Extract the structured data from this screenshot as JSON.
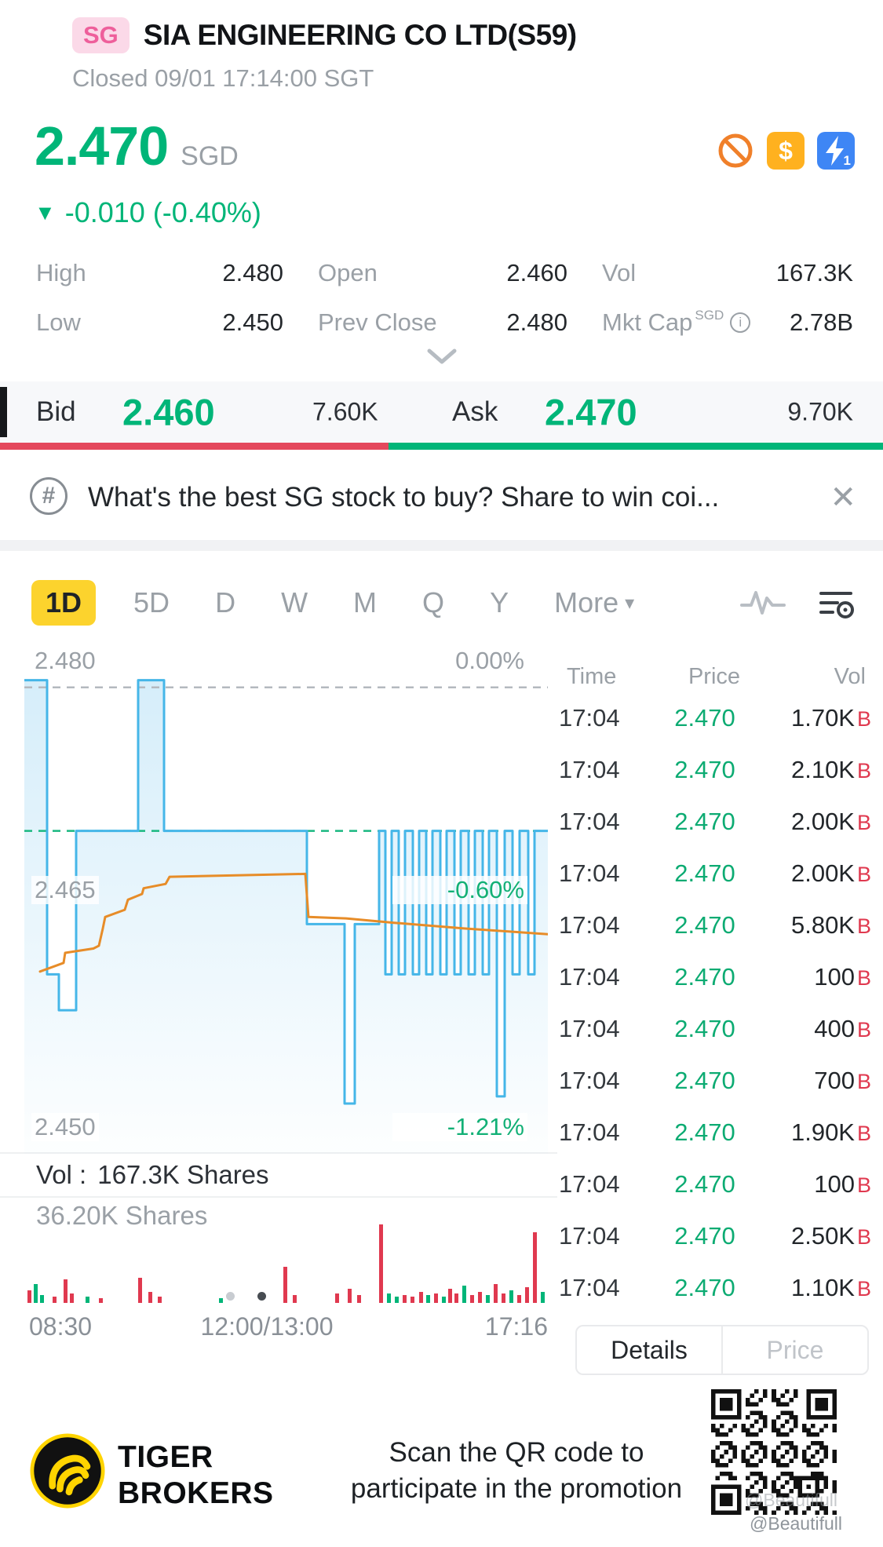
{
  "header": {
    "exchange_badge": "SG",
    "title": "SIA ENGINEERING CO LTD(S59)",
    "status": "Closed 09/01 17:14:00 SGT"
  },
  "quote": {
    "price": "2.470",
    "currency": "SGD",
    "direction": "▼",
    "change": "-0.010 (-0.40%)",
    "icons": {
      "dollar_glyph": "$",
      "flash_badge": "1"
    },
    "stats": [
      {
        "label": "High",
        "value": "2.480"
      },
      {
        "label": "Open",
        "value": "2.460"
      },
      {
        "label": "Vol",
        "value": "167.3K"
      },
      {
        "label": "Low",
        "value": "2.450"
      },
      {
        "label": "Prev Close",
        "value": "2.480"
      },
      {
        "label": "Mkt Cap",
        "sup": "SGD",
        "info": true,
        "value": "2.78B"
      }
    ]
  },
  "bid_ask": {
    "bid_label": "Bid",
    "bid_price": "2.460",
    "bid_size": "7.60K",
    "ask_label": "Ask",
    "ask_price": "2.470",
    "ask_size": "9.70K",
    "bid_ratio": 0.44
  },
  "banner": {
    "icon_glyph": "#",
    "text": "What's the best SG stock to buy? Share to win coi...",
    "close_glyph": "✕"
  },
  "tabs": {
    "periods": [
      "1D",
      "5D",
      "D",
      "W",
      "M",
      "Q",
      "Y"
    ],
    "active": "1D",
    "more_label": "More",
    "more_caret": "▾"
  },
  "volume_row": {
    "label": "Vol :",
    "value": "167.3K Shares"
  },
  "chart_data": {
    "type": "line",
    "y_range": [
      2.4475,
      2.4825
    ],
    "prev_close": 2.48,
    "last": 2.47,
    "y_labels": [
      {
        "price": "2.480",
        "pct": "0.00%"
      },
      {
        "price": "2.465",
        "pct": "-0.60%"
      },
      {
        "price": "2.450",
        "pct": "-1.21%"
      }
    ],
    "x_labels": [
      "08:30",
      "12:00/13:00",
      "17:16"
    ],
    "reference_lines": [
      {
        "price": 2.48,
        "style": "dashed",
        "color": "#b4b9bf"
      },
      {
        "price": 2.47,
        "style": "dashed",
        "color": "#19b880"
      }
    ],
    "series": [
      {
        "name": "price",
        "color": "#45b6e8",
        "points": [
          [
            0,
            2.4805
          ],
          [
            29,
            2.4805
          ],
          [
            29,
            2.46
          ],
          [
            44,
            2.46
          ],
          [
            44,
            2.4575
          ],
          [
            66,
            2.4575
          ],
          [
            66,
            2.47
          ],
          [
            145,
            2.47
          ],
          [
            145,
            2.4805
          ],
          [
            178,
            2.4805
          ],
          [
            178,
            2.47
          ],
          [
            360,
            2.47
          ],
          [
            360,
            2.4635
          ],
          [
            408,
            2.4635
          ],
          [
            408,
            2.451
          ],
          [
            421,
            2.451
          ],
          [
            421,
            2.4635
          ],
          [
            452,
            2.4635
          ],
          [
            452,
            2.47
          ],
          [
            460,
            2.47
          ],
          [
            460,
            2.46
          ],
          [
            468,
            2.46
          ],
          [
            468,
            2.47
          ],
          [
            477,
            2.47
          ],
          [
            477,
            2.46
          ],
          [
            485,
            2.46
          ],
          [
            485,
            2.47
          ],
          [
            495,
            2.47
          ],
          [
            495,
            2.46
          ],
          [
            503,
            2.46
          ],
          [
            503,
            2.47
          ],
          [
            512,
            2.47
          ],
          [
            512,
            2.46
          ],
          [
            520,
            2.46
          ],
          [
            520,
            2.47
          ],
          [
            530,
            2.47
          ],
          [
            530,
            2.46
          ],
          [
            538,
            2.46
          ],
          [
            538,
            2.47
          ],
          [
            548,
            2.47
          ],
          [
            548,
            2.46
          ],
          [
            556,
            2.46
          ],
          [
            556,
            2.47
          ],
          [
            566,
            2.47
          ],
          [
            566,
            2.46
          ],
          [
            574,
            2.46
          ],
          [
            574,
            2.47
          ],
          [
            584,
            2.47
          ],
          [
            584,
            2.46
          ],
          [
            592,
            2.46
          ],
          [
            592,
            2.47
          ],
          [
            602,
            2.47
          ],
          [
            602,
            2.4515
          ],
          [
            612,
            2.4515
          ],
          [
            612,
            2.47
          ],
          [
            622,
            2.47
          ],
          [
            622,
            2.46
          ],
          [
            631,
            2.46
          ],
          [
            631,
            2.47
          ],
          [
            642,
            2.47
          ],
          [
            642,
            2.46
          ],
          [
            650,
            2.46
          ],
          [
            650,
            2.47
          ],
          [
            667,
            2.47
          ]
        ]
      },
      {
        "name": "avg",
        "color": "#e78c28",
        "points": [
          [
            20,
            2.4602
          ],
          [
            50,
            2.4608
          ],
          [
            52,
            2.4615
          ],
          [
            88,
            2.4618
          ],
          [
            95,
            2.462
          ],
          [
            100,
            2.4632
          ],
          [
            103,
            2.464
          ],
          [
            128,
            2.4645
          ],
          [
            132,
            2.4652
          ],
          [
            150,
            2.4656
          ],
          [
            152,
            2.466
          ],
          [
            180,
            2.4663
          ],
          [
            185,
            2.4668
          ],
          [
            358,
            2.467
          ],
          [
            362,
            2.464
          ],
          [
            410,
            2.4639
          ],
          [
            470,
            2.4636
          ],
          [
            560,
            2.4632
          ],
          [
            667,
            2.4628
          ]
        ]
      }
    ],
    "volume": {
      "max_label": "36.20K Shares",
      "bars": [
        [
          4,
          16,
          "r"
        ],
        [
          12,
          24,
          "g"
        ],
        [
          20,
          10,
          "g"
        ],
        [
          36,
          8,
          "r"
        ],
        [
          50,
          30,
          "r"
        ],
        [
          58,
          12,
          "r"
        ],
        [
          78,
          8,
          "g"
        ],
        [
          95,
          6,
          "r"
        ],
        [
          145,
          32,
          "r"
        ],
        [
          158,
          14,
          "r"
        ],
        [
          170,
          8,
          "r"
        ],
        [
          248,
          6,
          "g"
        ],
        [
          330,
          46,
          "r"
        ],
        [
          342,
          10,
          "r"
        ],
        [
          396,
          12,
          "r"
        ],
        [
          412,
          18,
          "r"
        ],
        [
          424,
          10,
          "r"
        ],
        [
          452,
          100,
          "r"
        ],
        [
          462,
          12,
          "g"
        ],
        [
          472,
          8,
          "g"
        ],
        [
          482,
          10,
          "r"
        ],
        [
          492,
          8,
          "r"
        ],
        [
          503,
          14,
          "r"
        ],
        [
          512,
          10,
          "g"
        ],
        [
          522,
          12,
          "r"
        ],
        [
          532,
          8,
          "g"
        ],
        [
          540,
          18,
          "r"
        ],
        [
          548,
          12,
          "r"
        ],
        [
          558,
          22,
          "g"
        ],
        [
          568,
          10,
          "r"
        ],
        [
          578,
          14,
          "r"
        ],
        [
          588,
          10,
          "g"
        ],
        [
          598,
          24,
          "r"
        ],
        [
          608,
          12,
          "r"
        ],
        [
          618,
          16,
          "g"
        ],
        [
          628,
          10,
          "r"
        ],
        [
          638,
          20,
          "r"
        ],
        [
          648,
          90,
          "r"
        ],
        [
          658,
          14,
          "g"
        ]
      ]
    }
  },
  "tape": {
    "headers": [
      "Time",
      "Price",
      "Vol"
    ],
    "rows": [
      {
        "time": "17:04",
        "price": "2.470",
        "vol": "1.70K",
        "side": "B"
      },
      {
        "time": "17:04",
        "price": "2.470",
        "vol": "2.10K",
        "side": "B"
      },
      {
        "time": "17:04",
        "price": "2.470",
        "vol": "2.00K",
        "side": "B"
      },
      {
        "time": "17:04",
        "price": "2.470",
        "vol": "2.00K",
        "side": "B"
      },
      {
        "time": "17:04",
        "price": "2.470",
        "vol": "5.80K",
        "side": "B"
      },
      {
        "time": "17:04",
        "price": "2.470",
        "vol": "100",
        "side": "B"
      },
      {
        "time": "17:04",
        "price": "2.470",
        "vol": "400",
        "side": "B"
      },
      {
        "time": "17:04",
        "price": "2.470",
        "vol": "700",
        "side": "B"
      },
      {
        "time": "17:04",
        "price": "2.470",
        "vol": "1.90K",
        "side": "B"
      },
      {
        "time": "17:04",
        "price": "2.470",
        "vol": "100",
        "side": "B"
      },
      {
        "time": "17:04",
        "price": "2.470",
        "vol": "2.50K",
        "side": "B"
      },
      {
        "time": "17:04",
        "price": "2.470",
        "vol": "1.10K",
        "side": "B"
      }
    ]
  },
  "panel_tabs": {
    "details_label": "Details",
    "price_label": "Price"
  },
  "footer": {
    "brand_line1": "TIGER",
    "brand_line2": "BROKERS",
    "promo_line1": "Scan the QR code to",
    "promo_line2": "participate in the promotion",
    "watermark": "@Beautifull",
    "watermark_faint": "@Beautifull"
  },
  "colors": {
    "up_down_green": "#00b578",
    "red": "#e0394f",
    "chart_blue": "#45b6e8",
    "avg_orange": "#e78c28",
    "tab_yellow": "#fcd32d",
    "badge_pink_bg": "#fbd9e8",
    "badge_pink_text": "#ee5f9b"
  }
}
